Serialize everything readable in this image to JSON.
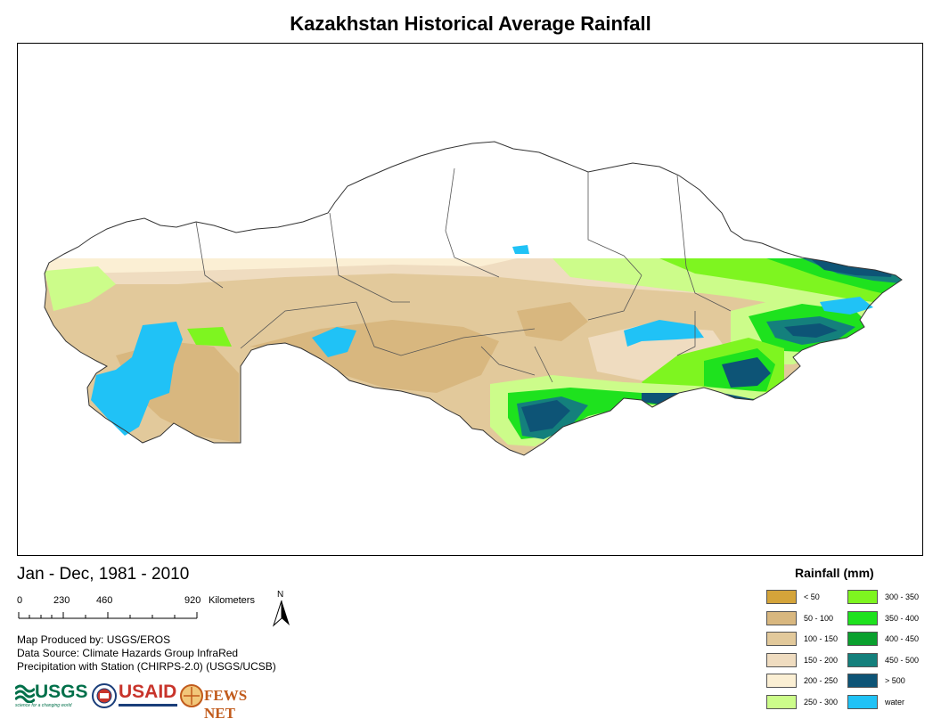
{
  "title": "Kazakhstan Historical Average Rainfall",
  "period": "Jan - Dec, 1981 - 2010",
  "scale_bar": {
    "ticks": [
      "0",
      "230",
      "460",
      "920"
    ],
    "units": "Kilometers"
  },
  "north_arrow": {
    "label": "N",
    "icon": "north-arrow-icon"
  },
  "credits": [
    "Map Produced by: USGS/EROS",
    "Data Source: Climate Hazards Group InfraRed",
    "Precipitation with Station (CHIRPS-2.0) (USGS/UCSB)"
  ],
  "logos": {
    "usgs": "USGS",
    "usgs_tagline": "science for a changing world",
    "usaid": "USAID",
    "fewsnet": "FEWS NET"
  },
  "legend": {
    "title": "Rainfall (mm)",
    "items": [
      {
        "label": "< 50",
        "color": "#d4a43a"
      },
      {
        "label": "50 - 100",
        "color": "#d8b77f"
      },
      {
        "label": "100 - 150",
        "color": "#e2c99b"
      },
      {
        "label": "150 - 200",
        "color": "#efdcc0"
      },
      {
        "label": "200 - 250",
        "color": "#fbefd4"
      },
      {
        "label": "250 - 300",
        "color": "#ccfc8a"
      },
      {
        "label": "300 - 350",
        "color": "#7ef520"
      },
      {
        "label": "350 - 400",
        "color": "#1ee21e"
      },
      {
        "label": "400 - 450",
        "color": "#0aa02e"
      },
      {
        "label": "450 - 500",
        "color": "#14807c"
      },
      {
        "label": "> 500",
        "color": "#0d5476"
      },
      {
        "label": "water",
        "color": "#20c2f6"
      }
    ]
  }
}
